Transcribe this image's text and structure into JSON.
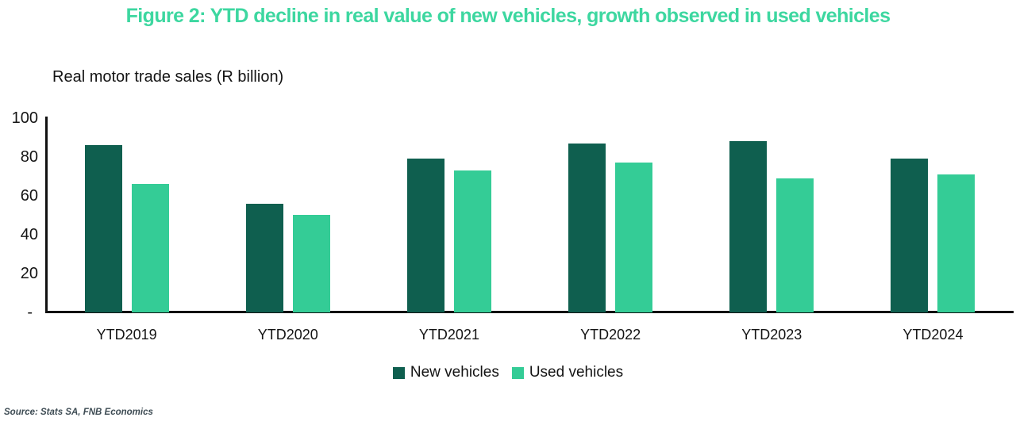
{
  "title": "Figure 2: YTD decline in real value of new vehicles, growth observed in used vehicles",
  "subtitle": "Real motor trade sales (R billion)",
  "source": "Source: Stats SA, FNB Economics",
  "colors": {
    "title_accent": "#3DD7A0",
    "new_vehicles": "#0F5F4F",
    "used_vehicles": "#34CC96",
    "axis": "#111111",
    "text": "#141414",
    "source_text": "#3E4C54"
  },
  "chart_data": {
    "type": "bar",
    "title": "Figure 2: YTD decline in real value of new vehicles, growth observed in used vehicles",
    "axis_title": "Real motor trade sales (R billion)",
    "categories": [
      "YTD2019",
      "YTD2020",
      "YTD2021",
      "YTD2022",
      "YTD2023",
      "YTD2024"
    ],
    "series": [
      {
        "name": "New vehicles",
        "color": "#0F5F4F",
        "values": [
          86,
          56,
          79,
          87,
          88,
          79
        ]
      },
      {
        "name": "Used vehicles",
        "color": "#34CC96",
        "values": [
          66,
          50,
          73,
          77,
          69,
          71
        ]
      }
    ],
    "xlabel": "",
    "ylabel": "",
    "ylim": [
      0,
      100
    ],
    "y_ticks": [
      {
        "label": "100",
        "value": 100
      },
      {
        "label": "80",
        "value": 80
      },
      {
        "label": "60",
        "value": 60
      },
      {
        "label": "40",
        "value": 40
      },
      {
        "label": "20",
        "value": 20
      },
      {
        "label": "-",
        "value": 0
      }
    ],
    "grid": false,
    "legend_position": "bottom"
  }
}
